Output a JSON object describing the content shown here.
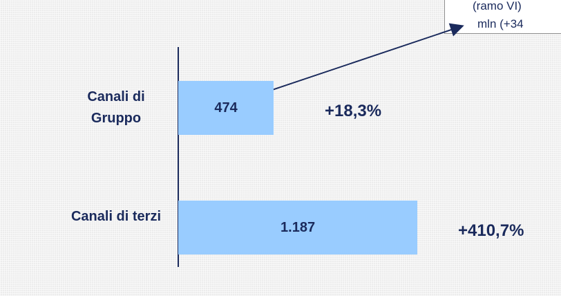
{
  "chart_data": {
    "type": "barh",
    "categories": [
      "Canali di Gruppo",
      "Canali di terzi"
    ],
    "values": [
      474,
      1187
    ],
    "value_labels": [
      "474",
      "1.187"
    ],
    "color": "#99ccff",
    "xlim": [
      0,
      1900
    ],
    "annotations": [
      "+18,3%",
      "+410,7%"
    ],
    "callout": [
      "(ramo VI)",
      "mln (+34"
    ]
  }
}
